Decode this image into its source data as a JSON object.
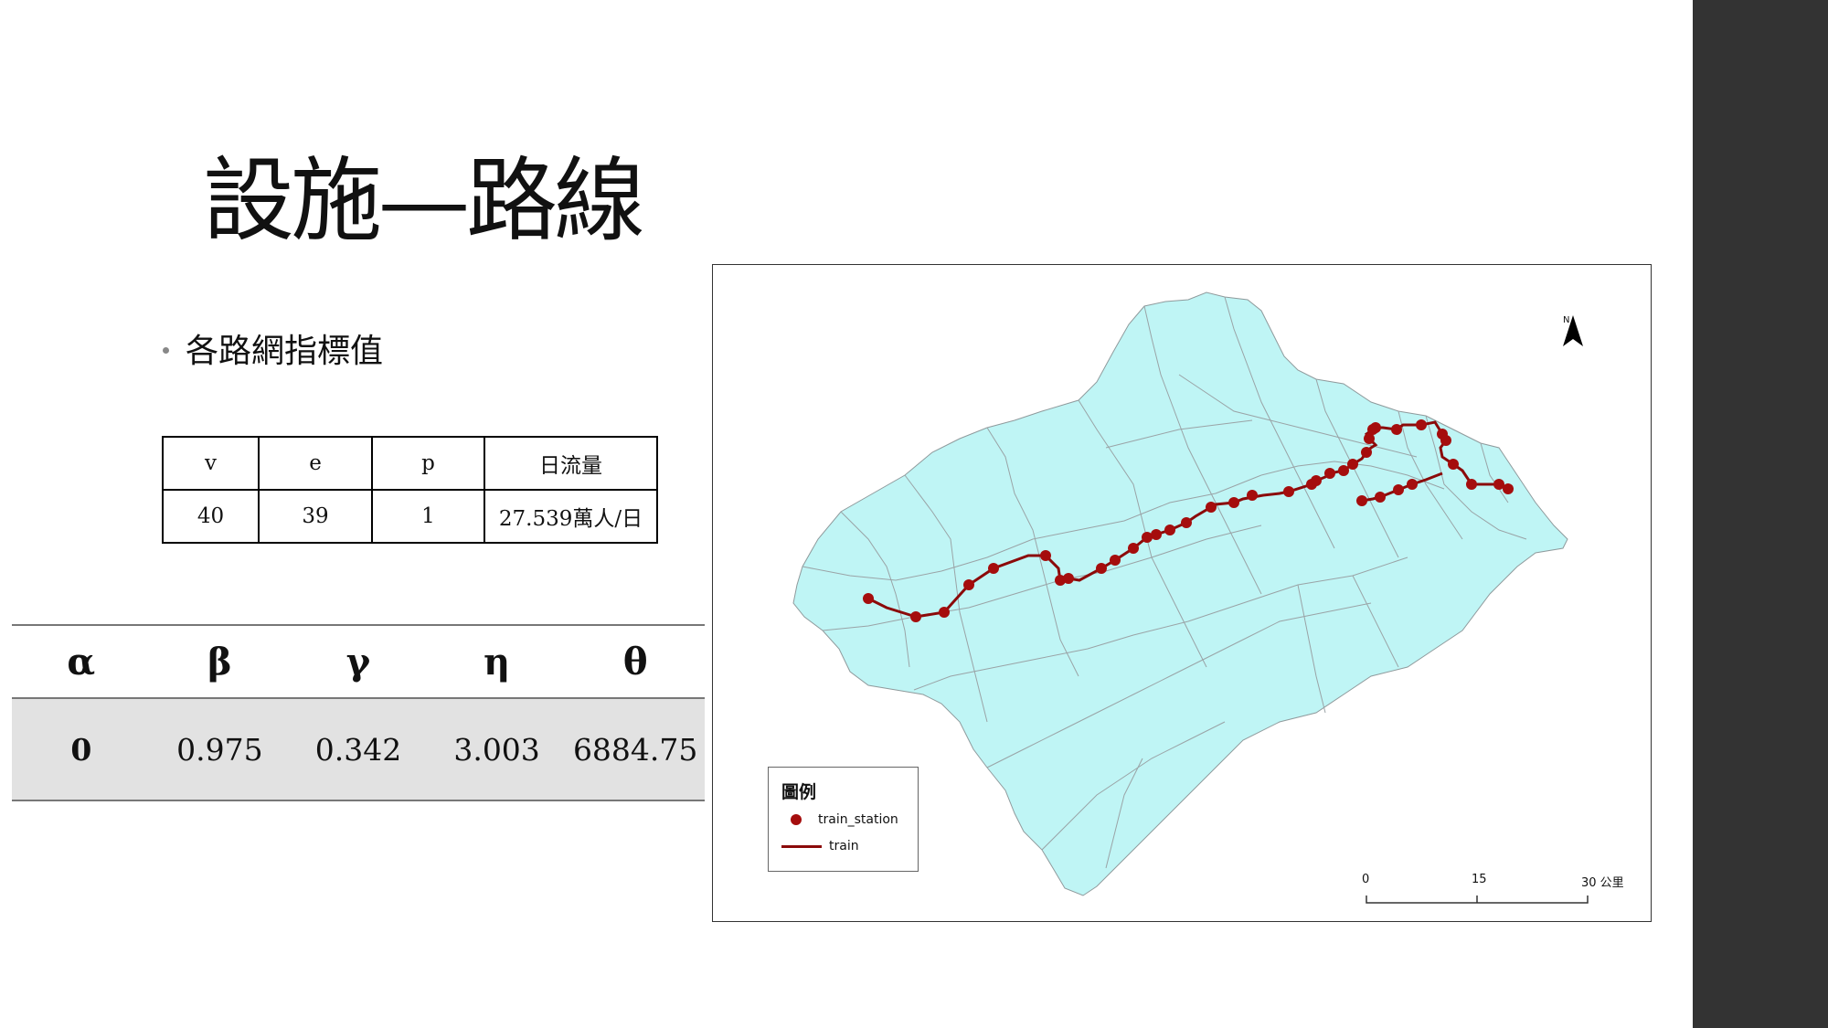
{
  "title": "設施—路線",
  "bullet": "各路網指標值",
  "index_table": {
    "headers": [
      "v",
      "e",
      "p",
      "日流量"
    ],
    "values": [
      "40",
      "39",
      "1",
      "27.539萬人/日"
    ]
  },
  "greek_table": {
    "headers": [
      "α",
      "β",
      "γ",
      "η",
      "θ"
    ],
    "values": [
      "0",
      "0.975",
      "0.342",
      "3.003",
      "6884.75"
    ]
  },
  "map": {
    "north_label": "N",
    "legend_title": "圖例",
    "legend_items": [
      {
        "label": "train_station",
        "symbol": "point"
      },
      {
        "label": "train",
        "symbol": "line"
      }
    ],
    "scale_labels": [
      "0",
      "15",
      "30 公里"
    ],
    "colors": {
      "land": "#bff5f5",
      "boundary": "#9aa3a6",
      "route": "#8b0a0a",
      "station": "#a50d0d"
    }
  }
}
